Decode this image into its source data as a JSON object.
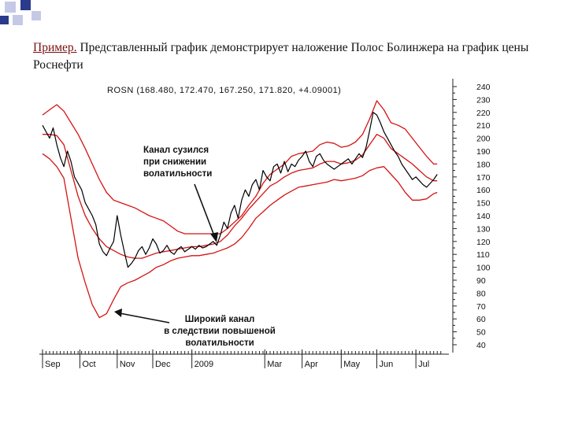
{
  "slide": {
    "lead": "Пример.",
    "text": " Представленный график демонстрирует наложение Полос Болинжера на график цены Роснефти"
  },
  "chart_data": {
    "type": "line",
    "title": "ROSN (168.480, 172.470, 167.250, 171.820, +4.09001)",
    "ticker": "ROSN",
    "ohlc_last": {
      "open": 168.48,
      "high": 172.47,
      "low": 167.25,
      "close": 171.82,
      "change": 4.09001
    },
    "ylim": [
      40,
      240
    ],
    "y_ticks": [
      40,
      50,
      60,
      70,
      80,
      90,
      100,
      110,
      120,
      130,
      140,
      150,
      160,
      170,
      180,
      190,
      200,
      210,
      220,
      230,
      240
    ],
    "x_tick_labels": [
      "Sep",
      "Oct",
      "Nov",
      "Dec",
      "2009",
      "Mar",
      "Apr",
      "May",
      "Jun",
      "Jul"
    ],
    "x_tick_pos": [
      0,
      21,
      42,
      62,
      84,
      125,
      146,
      168,
      188,
      210
    ],
    "xlim": [
      0,
      225
    ],
    "series": [
      {
        "role": "upper",
        "color": "#d41414",
        "x": [
          0,
          4,
          8,
          12,
          16,
          20,
          24,
          28,
          32,
          36,
          40,
          44,
          48,
          52,
          56,
          60,
          64,
          68,
          72,
          76,
          80,
          84,
          88,
          92,
          96,
          100,
          104,
          108,
          112,
          116,
          120,
          124,
          128,
          132,
          136,
          140,
          144,
          148,
          152,
          156,
          160,
          164,
          168,
          172,
          176,
          180,
          184,
          188,
          192,
          196,
          200,
          204,
          208,
          212,
          216,
          220,
          222
        ],
        "y": [
          218,
          222,
          226,
          221,
          212,
          203,
          192,
          180,
          168,
          158,
          152,
          150,
          148,
          146,
          143,
          140,
          138,
          136,
          132,
          128,
          126,
          126,
          126,
          126,
          126,
          126,
          130,
          135,
          140,
          148,
          155,
          165,
          172,
          176,
          180,
          186,
          188,
          189,
          190,
          195,
          197,
          196,
          193,
          194,
          197,
          203,
          215,
          229,
          222,
          212,
          210,
          207,
          200,
          193,
          186,
          180,
          180
        ]
      },
      {
        "role": "middle",
        "color": "#d41414",
        "x": [
          0,
          4,
          8,
          12,
          16,
          20,
          24,
          28,
          32,
          36,
          40,
          44,
          48,
          52,
          56,
          60,
          64,
          68,
          72,
          76,
          80,
          84,
          88,
          92,
          96,
          100,
          104,
          108,
          112,
          116,
          120,
          124,
          128,
          132,
          136,
          140,
          144,
          148,
          152,
          156,
          160,
          164,
          168,
          172,
          176,
          180,
          184,
          188,
          192,
          196,
          200,
          204,
          208,
          212,
          216,
          220,
          222
        ],
        "y": [
          203,
          203,
          202,
          195,
          175,
          155,
          140,
          130,
          122,
          116,
          113,
          110,
          108,
          107,
          107,
          109,
          111,
          112,
          113,
          114,
          115,
          116,
          116,
          117,
          118,
          120,
          125,
          132,
          138,
          145,
          151,
          157,
          163,
          166,
          170,
          173,
          175,
          176,
          177,
          180,
          182,
          182,
          180,
          181,
          183,
          187,
          195,
          203,
          200,
          192,
          188,
          184,
          180,
          175,
          170,
          167,
          167
        ]
      },
      {
        "role": "lower",
        "color": "#d41414",
        "x": [
          0,
          4,
          8,
          12,
          16,
          20,
          24,
          28,
          32,
          36,
          40,
          44,
          48,
          52,
          56,
          60,
          64,
          68,
          72,
          76,
          80,
          84,
          88,
          92,
          96,
          100,
          104,
          108,
          112,
          116,
          120,
          124,
          128,
          132,
          136,
          140,
          144,
          148,
          152,
          156,
          160,
          164,
          168,
          172,
          176,
          180,
          184,
          188,
          192,
          196,
          200,
          204,
          208,
          212,
          216,
          220,
          222
        ],
        "y": [
          188,
          184,
          178,
          169,
          138,
          107,
          88,
          71,
          61,
          64,
          75,
          85,
          88,
          90,
          93,
          96,
          100,
          102,
          105,
          107,
          108,
          109,
          109,
          110,
          111,
          113,
          115,
          118,
          123,
          130,
          138,
          143,
          148,
          152,
          156,
          159,
          162,
          163,
          164,
          165,
          166,
          168,
          167,
          168,
          169,
          171,
          175,
          177,
          178,
          172,
          166,
          158,
          152,
          152,
          153,
          157,
          158
        ]
      },
      {
        "role": "price",
        "color": "#000000",
        "x": [
          0,
          2,
          4,
          6,
          8,
          10,
          12,
          14,
          16,
          18,
          20,
          22,
          24,
          26,
          28,
          30,
          32,
          34,
          36,
          38,
          40,
          42,
          44,
          46,
          48,
          50,
          52,
          54,
          56,
          58,
          60,
          62,
          64,
          66,
          68,
          70,
          72,
          74,
          76,
          78,
          80,
          82,
          84,
          86,
          88,
          90,
          92,
          94,
          96,
          98,
          100,
          102,
          104,
          106,
          108,
          110,
          112,
          114,
          116,
          118,
          120,
          122,
          124,
          126,
          128,
          130,
          132,
          134,
          136,
          138,
          140,
          142,
          144,
          146,
          148,
          150,
          152,
          154,
          156,
          158,
          160,
          162,
          164,
          166,
          168,
          170,
          172,
          174,
          176,
          178,
          180,
          182,
          184,
          186,
          188,
          190,
          192,
          194,
          196,
          198,
          200,
          202,
          204,
          206,
          208,
          210,
          212,
          214,
          216,
          218,
          220,
          222
        ],
        "y": [
          210,
          205,
          200,
          208,
          195,
          185,
          178,
          190,
          182,
          170,
          165,
          160,
          150,
          145,
          140,
          133,
          118,
          112,
          109,
          115,
          120,
          140,
          125,
          112,
          100,
          103,
          107,
          113,
          116,
          110,
          115,
          122,
          118,
          111,
          113,
          117,
          112,
          110,
          114,
          116,
          112,
          114,
          116,
          114,
          117,
          115,
          116,
          118,
          120,
          117,
          125,
          135,
          130,
          142,
          148,
          138,
          152,
          160,
          155,
          164,
          168,
          160,
          175,
          170,
          167,
          178,
          180,
          173,
          182,
          174,
          180,
          178,
          183,
          186,
          190,
          182,
          178,
          186,
          188,
          183,
          180,
          178,
          176,
          178,
          180,
          182,
          184,
          180,
          184,
          188,
          185,
          193,
          206,
          220,
          218,
          212,
          205,
          200,
          195,
          190,
          186,
          180,
          176,
          172,
          168,
          170,
          167,
          164,
          162,
          165,
          168,
          172
        ]
      }
    ],
    "annotations": [
      {
        "id": "narrow",
        "lines": [
          "Канал сузился",
          "при снижении",
          "волатильности"
        ]
      },
      {
        "id": "wide",
        "lines": [
          "Широкий канал",
          "в следствии повышеной",
          "волатильности"
        ]
      }
    ]
  }
}
